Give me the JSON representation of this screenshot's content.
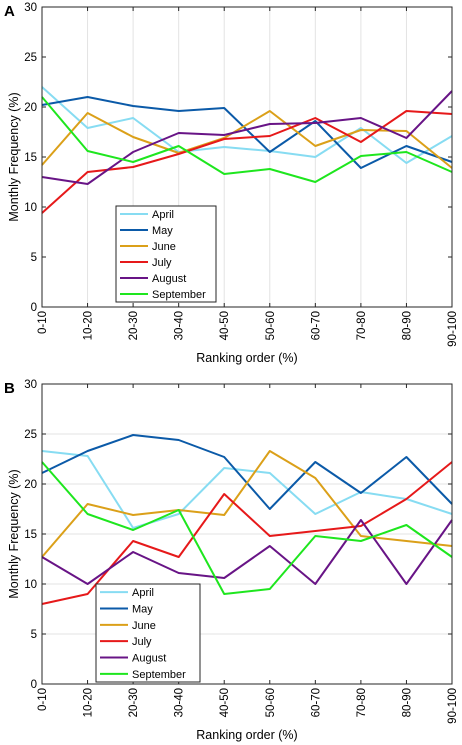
{
  "chart_data": [
    {
      "panel": "A",
      "type": "line",
      "xlabel": "Ranking order (%)",
      "ylabel": "Monthly Frequency  (%)",
      "ylim": [
        0,
        30
      ],
      "yticks": [
        0,
        5,
        10,
        15,
        20,
        25,
        30
      ],
      "categories": [
        "0-10",
        "10-20",
        "20-30",
        "30-40",
        "40-50",
        "50-60",
        "60-70",
        "70-80",
        "80-90",
        "90-100"
      ],
      "grid": "vertical",
      "legend_position": "lower-left",
      "series": [
        {
          "name": "April",
          "color": "#87dcf2",
          "values": [
            22.0,
            17.9,
            18.9,
            15.5,
            16.0,
            15.6,
            15.0,
            17.9,
            14.4,
            17.1
          ]
        },
        {
          "name": "May",
          "color": "#0b5aa8",
          "values": [
            20.2,
            21.0,
            20.1,
            19.6,
            19.9,
            15.5,
            18.6,
            13.9,
            16.1,
            14.5
          ]
        },
        {
          "name": "June",
          "color": "#dba019",
          "values": [
            14.2,
            19.4,
            17.0,
            15.4,
            16.9,
            19.6,
            16.1,
            17.7,
            17.6,
            13.9
          ]
        },
        {
          "name": "July",
          "color": "#e6191a",
          "values": [
            9.4,
            13.5,
            14.0,
            15.3,
            16.8,
            17.1,
            18.9,
            16.5,
            19.6,
            19.3
          ]
        },
        {
          "name": "August",
          "color": "#681486",
          "values": [
            13.0,
            12.3,
            15.5,
            17.4,
            17.2,
            18.3,
            18.4,
            18.9,
            16.9,
            21.6
          ]
        },
        {
          "name": "September",
          "color": "#1ee61e",
          "values": [
            21.0,
            15.6,
            14.5,
            16.1,
            13.3,
            13.8,
            12.5,
            15.1,
            15.5,
            13.5
          ]
        }
      ]
    },
    {
      "panel": "B",
      "type": "line",
      "xlabel": "Ranking order (%)",
      "ylabel": "Monthly Frequency  (%)",
      "ylim": [
        0,
        30
      ],
      "yticks": [
        0,
        5,
        10,
        15,
        20,
        25,
        30
      ],
      "categories": [
        "0-10",
        "10-20",
        "20-30",
        "30-40",
        "40-50",
        "50-60",
        "60-70",
        "70-80",
        "80-90",
        "90-100"
      ],
      "grid": "horizontal",
      "legend_position": "lower-left",
      "series": [
        {
          "name": "April",
          "color": "#87dcf2",
          "values": [
            23.3,
            22.8,
            15.6,
            17.0,
            21.6,
            21.1,
            17.0,
            19.2,
            18.5,
            17.0
          ]
        },
        {
          "name": "May",
          "color": "#0b5aa8",
          "values": [
            21.1,
            23.3,
            24.9,
            24.4,
            22.7,
            17.5,
            22.2,
            19.1,
            22.7,
            18.0
          ]
        },
        {
          "name": "June",
          "color": "#dba019",
          "values": [
            12.7,
            18.0,
            16.9,
            17.4,
            16.9,
            23.3,
            20.6,
            14.8,
            14.3,
            13.8
          ]
        },
        {
          "name": "July",
          "color": "#e6191a",
          "values": [
            8.0,
            9.0,
            14.3,
            12.7,
            19.0,
            14.8,
            15.3,
            15.8,
            18.5,
            22.2
          ]
        },
        {
          "name": "August",
          "color": "#681486",
          "values": [
            12.7,
            10.0,
            13.2,
            11.1,
            10.6,
            13.8,
            10.0,
            16.4,
            10.0,
            16.4
          ]
        },
        {
          "name": "September",
          "color": "#1ee61e",
          "values": [
            22.2,
            17.0,
            15.4,
            17.4,
            9.0,
            9.5,
            14.8,
            14.3,
            15.9,
            12.7
          ]
        }
      ]
    }
  ]
}
